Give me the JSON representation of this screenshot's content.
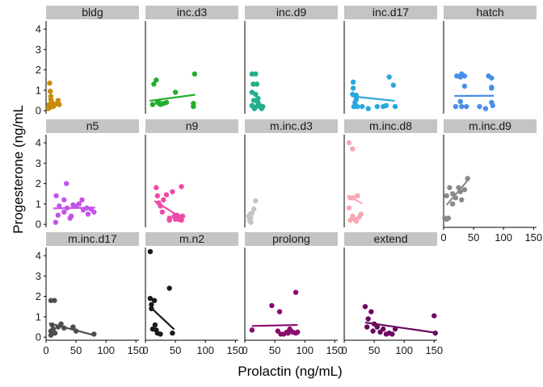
{
  "chart_data": {
    "type": "scatter",
    "xlabel": "Prolactin (ng/mL)",
    "ylabel": "Progesterone (ng/mL",
    "xlim": [
      0,
      155
    ],
    "ylim": [
      -0.15,
      4.4
    ],
    "xticks": [
      0,
      50,
      100,
      150
    ],
    "yticks": [
      0,
      1,
      2,
      3,
      4
    ],
    "strip_color": "#c4c4c4",
    "axis_color": "#000000",
    "panels": [
      {
        "name": "bldg",
        "color": "#c98a0c",
        "points": [
          [
            5,
            0.3
          ],
          [
            6,
            1.35
          ],
          [
            4,
            0.1
          ],
          [
            7,
            0.95
          ],
          [
            8,
            0.55
          ],
          [
            10,
            0.4
          ],
          [
            12,
            0.2
          ],
          [
            15,
            0.3
          ],
          [
            20,
            0.5
          ],
          [
            22,
            0.3
          ],
          [
            8,
            0.7
          ],
          [
            6,
            0.15
          ]
        ],
        "line": null
      },
      {
        "name": "inc.d3",
        "color": "#24ad2e",
        "points": [
          [
            12,
            0.3
          ],
          [
            14,
            1.3
          ],
          [
            20,
            0.4
          ],
          [
            22,
            0.45
          ],
          [
            18,
            1.5
          ],
          [
            30,
            0.35
          ],
          [
            35,
            0.4
          ],
          [
            50,
            0.9
          ],
          [
            80,
            0.35
          ],
          [
            82,
            1.8
          ],
          [
            80,
            0.2
          ],
          [
            25,
            0.3
          ]
        ],
        "line": [
          [
            7,
            0.48
          ],
          [
            83,
            0.78
          ]
        ]
      },
      {
        "name": "inc.d9",
        "color": "#21b08c",
        "points": [
          [
            12,
            1.8
          ],
          [
            18,
            1.8
          ],
          [
            14,
            1.3
          ],
          [
            20,
            1.3
          ],
          [
            12,
            0.9
          ],
          [
            18,
            0.8
          ],
          [
            15,
            0.5
          ],
          [
            22,
            0.4
          ],
          [
            12,
            0.25
          ],
          [
            20,
            0.2
          ],
          [
            25,
            0.25
          ],
          [
            30,
            0.2
          ],
          [
            16,
            0.1
          ],
          [
            28,
            0.1
          ],
          [
            22,
            0.6
          ]
        ],
        "line": null
      },
      {
        "name": "inc.d17",
        "color": "#2aa6df",
        "points": [
          [
            15,
            1.4
          ],
          [
            15,
            1.1
          ],
          [
            14,
            0.8
          ],
          [
            20,
            0.75
          ],
          [
            20,
            0.55
          ],
          [
            16,
            0.2
          ],
          [
            22,
            0.2
          ],
          [
            30,
            0.2
          ],
          [
            40,
            0.1
          ],
          [
            55,
            0.2
          ],
          [
            65,
            0.2
          ],
          [
            70,
            0.25
          ],
          [
            75,
            1.65
          ],
          [
            82,
            1.25
          ],
          [
            85,
            0.2
          ],
          [
            18,
            0.4
          ]
        ],
        "line": [
          [
            13,
            0.7
          ],
          [
            84,
            0.48
          ]
        ]
      },
      {
        "name": "hatch",
        "color": "#4a8ee8",
        "points": [
          [
            22,
            1.7
          ],
          [
            28,
            1.65
          ],
          [
            30,
            1.8
          ],
          [
            35,
            1.7
          ],
          [
            35,
            1.2
          ],
          [
            20,
            0.2
          ],
          [
            28,
            0.45
          ],
          [
            30,
            0.2
          ],
          [
            38,
            0.2
          ],
          [
            60,
            0.2
          ],
          [
            70,
            0.1
          ],
          [
            80,
            1.1
          ],
          [
            75,
            1.7
          ],
          [
            80,
            1.6
          ],
          [
            80,
            1.15
          ],
          [
            82,
            0.25
          ],
          [
            80,
            0.4
          ]
        ],
        "line": [
          [
            18,
            0.72
          ],
          [
            84,
            0.73
          ]
        ]
      },
      {
        "name": "n5",
        "color": "#c454e8",
        "points": [
          [
            16,
            0.1
          ],
          [
            17,
            1.4
          ],
          [
            20,
            0.45
          ],
          [
            22,
            0.9
          ],
          [
            30,
            1.2
          ],
          [
            30,
            0.6
          ],
          [
            34,
            2.0
          ],
          [
            40,
            0.3
          ],
          [
            45,
            0.95
          ],
          [
            50,
            0.9
          ],
          [
            55,
            1.0
          ],
          [
            60,
            1.2
          ],
          [
            62,
            0.7
          ],
          [
            68,
            0.8
          ],
          [
            70,
            0.5
          ],
          [
            75,
            0.75
          ],
          [
            80,
            0.6
          ],
          [
            35,
            0.8
          ],
          [
            42,
            0.4
          ]
        ],
        "line": [
          [
            12,
            0.78
          ],
          [
            82,
            0.82
          ]
        ]
      },
      {
        "name": "n9",
        "color": "#f04aa8",
        "points": [
          [
            18,
            1.8
          ],
          [
            20,
            1.4
          ],
          [
            22,
            1.05
          ],
          [
            25,
            0.9
          ],
          [
            28,
            0.6
          ],
          [
            30,
            1.2
          ],
          [
            35,
            1.45
          ],
          [
            40,
            0.3
          ],
          [
            40,
            0.2
          ],
          [
            45,
            1.6
          ],
          [
            48,
            0.4
          ],
          [
            50,
            0.25
          ],
          [
            55,
            0.4
          ],
          [
            55,
            0.25
          ],
          [
            60,
            1.85
          ],
          [
            62,
            0.4
          ],
          [
            60,
            0.2
          ],
          [
            52,
            0.45
          ]
        ],
        "line": [
          [
            15,
            1.15
          ],
          [
            62,
            0.28
          ]
        ]
      },
      {
        "name": "m.inc.d3",
        "color": "#c4c4c4",
        "points": [
          [
            6,
            0.4
          ],
          [
            8,
            0.2
          ],
          [
            9,
            0.5
          ],
          [
            10,
            0.3
          ],
          [
            12,
            0.55
          ],
          [
            15,
            0.75
          ],
          [
            18,
            1.15
          ],
          [
            10,
            0.1
          ]
        ],
        "line": [
          [
            5,
            0.35
          ],
          [
            18,
            0.75
          ]
        ]
      },
      {
        "name": "m.inc.d8",
        "color": "#f7a8b2",
        "points": [
          [
            8,
            4.0
          ],
          [
            14,
            3.7
          ],
          [
            10,
            1.3
          ],
          [
            15,
            1.3
          ],
          [
            8,
            0.8
          ],
          [
            14,
            0.4
          ],
          [
            10,
            0.2
          ],
          [
            18,
            0.25
          ],
          [
            20,
            0.15
          ],
          [
            25,
            0.35
          ],
          [
            28,
            0.5
          ],
          [
            22,
            1.4
          ]
        ],
        "line": [
          [
            5,
            1.42
          ],
          [
            30,
            1.02
          ]
        ]
      },
      {
        "name": "m.inc.d9",
        "color": "#8a8a8a",
        "points": [
          [
            2,
            0.3
          ],
          [
            5,
            0.25
          ],
          [
            8,
            0.3
          ],
          [
            10,
            1.8
          ],
          [
            15,
            1.5
          ],
          [
            20,
            1.3
          ],
          [
            25,
            1.8
          ],
          [
            28,
            1.6
          ],
          [
            30,
            1.2
          ],
          [
            35,
            1.7
          ],
          [
            40,
            2.25
          ],
          [
            15,
            1.0
          ],
          [
            5,
            1.4
          ]
        ],
        "line": [
          [
            5,
            0.95
          ],
          [
            40,
            2.15
          ]
        ]
      },
      {
        "name": "m.inc.d17",
        "color": "#4d4d4d",
        "points": [
          [
            8,
            1.8
          ],
          [
            14,
            1.8
          ],
          [
            10,
            0.6
          ],
          [
            12,
            0.4
          ],
          [
            8,
            0.3
          ],
          [
            12,
            0.2
          ],
          [
            8,
            0.1
          ],
          [
            15,
            0.2
          ],
          [
            20,
            0.5
          ],
          [
            25,
            0.65
          ],
          [
            30,
            0.45
          ],
          [
            45,
            0.5
          ],
          [
            50,
            0.3
          ],
          [
            80,
            0.15
          ]
        ],
        "line": [
          [
            5,
            0.68
          ],
          [
            80,
            0.1
          ]
        ]
      },
      {
        "name": "m.n2",
        "color": "#1a1a1a",
        "points": [
          [
            8,
            4.2
          ],
          [
            8,
            1.9
          ],
          [
            10,
            1.6
          ],
          [
            15,
            1.8
          ],
          [
            12,
            0.4
          ],
          [
            18,
            0.35
          ],
          [
            20,
            0.2
          ],
          [
            25,
            0.15
          ],
          [
            40,
            2.4
          ],
          [
            45,
            0.2
          ],
          [
            10,
            1.4
          ],
          [
            16,
            0.6
          ]
        ],
        "line": [
          [
            8,
            1.48
          ],
          [
            48,
            0.38
          ]
        ]
      },
      {
        "name": "prolong",
        "color": "#8a0a6e",
        "points": [
          [
            12,
            0.35
          ],
          [
            45,
            1.55
          ],
          [
            55,
            0.3
          ],
          [
            58,
            1.25
          ],
          [
            60,
            0.15
          ],
          [
            70,
            0.25
          ],
          [
            72,
            0.2
          ],
          [
            75,
            0.4
          ],
          [
            80,
            0.25
          ],
          [
            85,
            0.2
          ],
          [
            85,
            2.2
          ],
          [
            88,
            0.25
          ],
          [
            65,
            0.15
          ]
        ],
        "line": [
          [
            12,
            0.55
          ],
          [
            88,
            0.6
          ]
        ]
      },
      {
        "name": "extend",
        "color": "#6b0a5e",
        "points": [
          [
            35,
            1.5
          ],
          [
            38,
            0.5
          ],
          [
            40,
            0.9
          ],
          [
            45,
            1.25
          ],
          [
            50,
            0.65
          ],
          [
            55,
            0.5
          ],
          [
            60,
            0.25
          ],
          [
            65,
            0.4
          ],
          [
            70,
            0.15
          ],
          [
            75,
            0.2
          ],
          [
            80,
            0.15
          ],
          [
            85,
            0.4
          ],
          [
            150,
            1.05
          ],
          [
            152,
            0.2
          ],
          [
            48,
            0.3
          ]
        ],
        "line": [
          [
            35,
            0.72
          ],
          [
            152,
            0.22
          ]
        ]
      }
    ]
  }
}
